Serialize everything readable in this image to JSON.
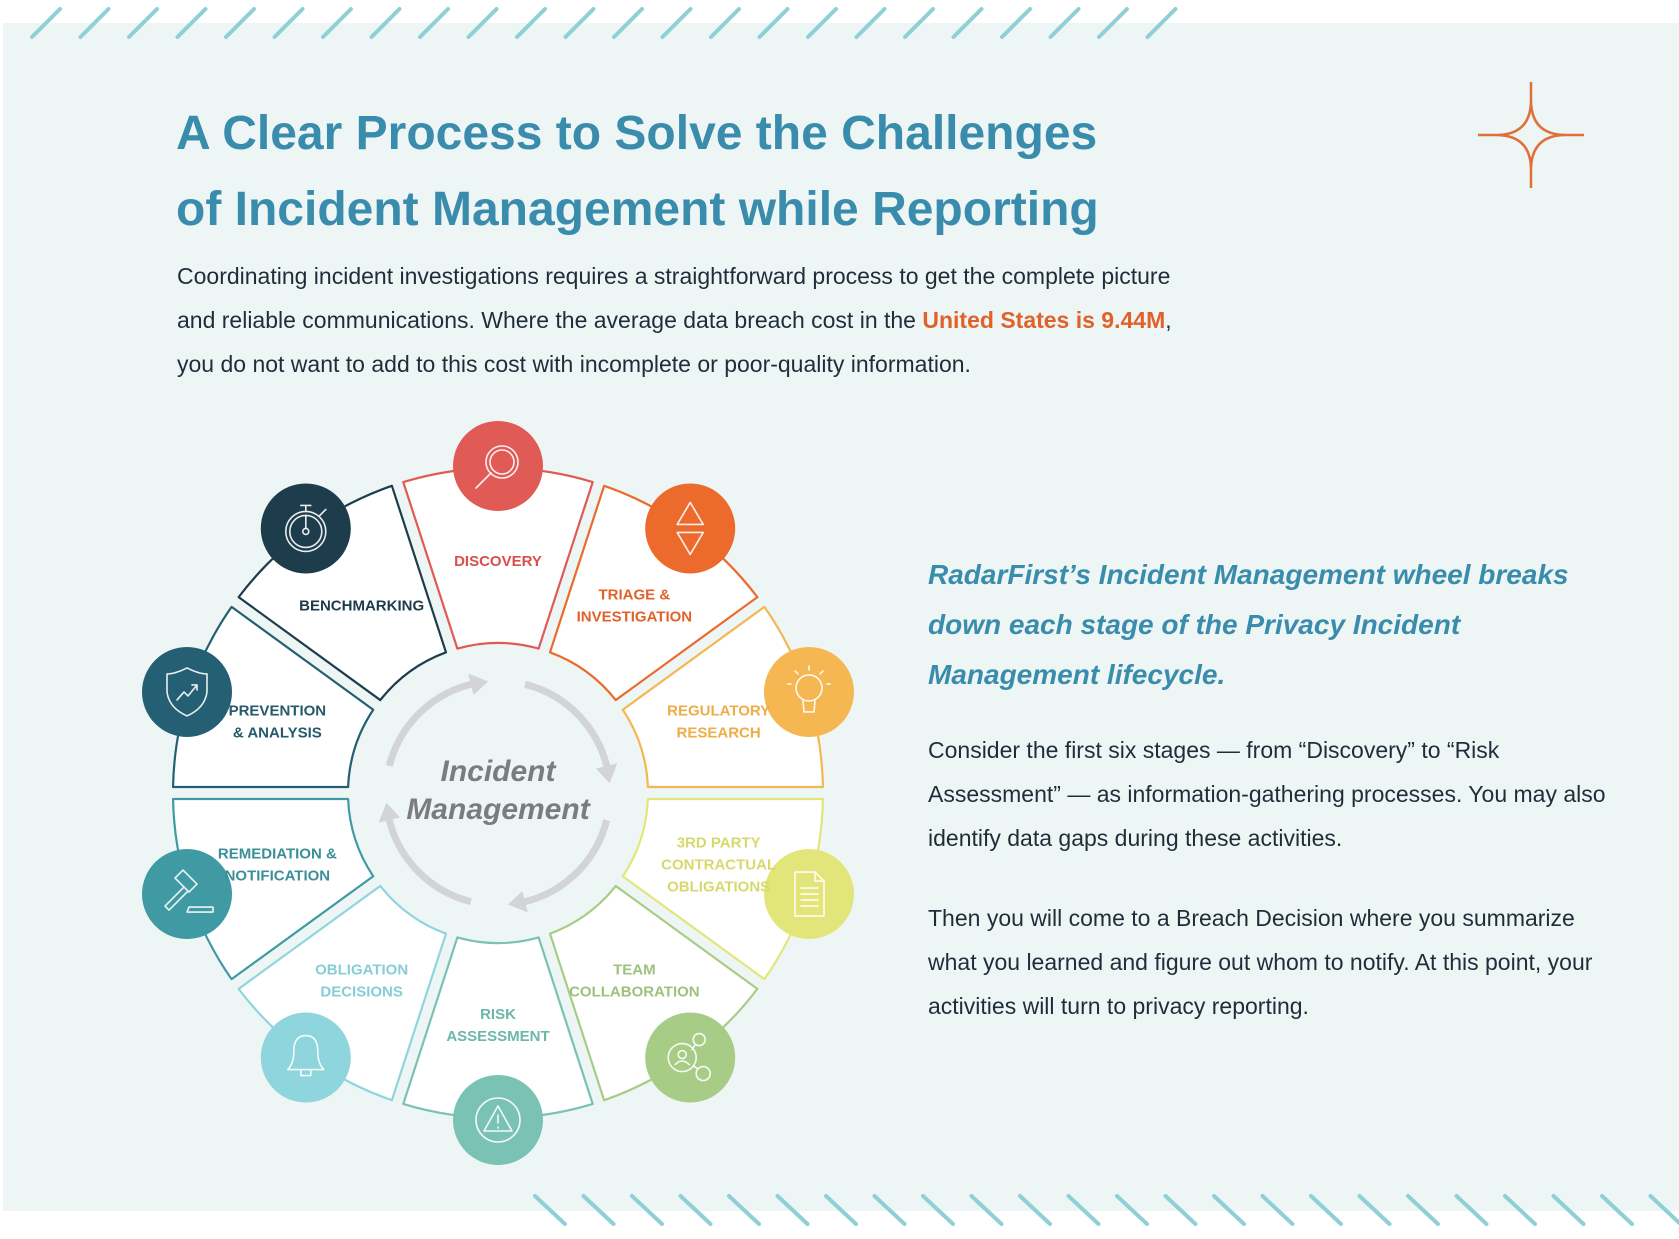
{
  "heading": {
    "line1": "A Clear Process to Solve the Challenges",
    "line2": "of Incident Management while Reporting"
  },
  "intro": {
    "text1": "Coordinating incident investigations requires a straightforward process to get the complete picture and reliable communications. Where the average data breach cost in the ",
    "highlight": "United States is 9.44M",
    "text2": ", you do not want to add to this cost with incomplete or poor-quality information."
  },
  "side": {
    "heading": "RadarFirst’s Incident Management wheel breaks down each stage of the Privacy Incident Management lifecycle.",
    "paragraph1": "Consider the first six stages — from “Discovery” to “Risk Assessment” — as information-gathering processes. You may also identify data gaps during these activities.",
    "paragraph2": "Then you will come to a Breach Decision where you summarize what you learned and figure out whom to notify. At this point, your activities will turn to privacy reporting."
  },
  "colors": {
    "title": "#3a8cad",
    "highlight": "#e0622a",
    "accent_star": "#e07038",
    "stripes": "#8fd0d6",
    "arrows": "#d2d4d6"
  },
  "wheel": {
    "center_lines": [
      "Incident",
      "Management"
    ],
    "stages": [
      {
        "lines": [
          "DISCOVERY"
        ],
        "icon": "magnifier-icon",
        "color": "#e05a56",
        "text_color": "#d94f4c"
      },
      {
        "lines": [
          "TRIAGE &",
          "INVESTIGATION"
        ],
        "icon": "triangles-icon",
        "color": "#ec6a2c",
        "text_color": "#e0622a"
      },
      {
        "lines": [
          "REGULATORY",
          "RESEARCH"
        ],
        "icon": "lightbulb-icon",
        "color": "#f4b752",
        "text_color": "#eeac45"
      },
      {
        "lines": [
          "3RD PARTY",
          "CONTRACTUAL",
          "OBLIGATIONS"
        ],
        "icon": "document-icon",
        "color": "#e2e67a",
        "text_color": "#d6d96c"
      },
      {
        "lines": [
          "TEAM",
          "COLLABORATION"
        ],
        "icon": "people-network-icon",
        "color": "#a7cc86",
        "text_color": "#9cc27c"
      },
      {
        "lines": [
          "RISK",
          "ASSESSMENT"
        ],
        "icon": "warning-icon",
        "color": "#79c2b4",
        "text_color": "#6cb7a9"
      },
      {
        "lines": [
          "OBLIGATION",
          "DECISIONS"
        ],
        "icon": "bell-icon",
        "color": "#8fd5dd",
        "text_color": "#86cdd6"
      },
      {
        "lines": [
          "REMEDIATION &",
          "NOTIFICATION"
        ],
        "icon": "gavel-icon",
        "color": "#3f9aa3",
        "text_color": "#3a8f98"
      },
      {
        "lines": [
          "PREVENTION",
          "& ANALYSIS"
        ],
        "icon": "shield-chart-icon",
        "color": "#255f73",
        "text_color": "#245a6c"
      },
      {
        "lines": [
          "BENCHMARKING"
        ],
        "icon": "stopwatch-icon",
        "color": "#1d3d4c",
        "text_color": "#1d3a48"
      }
    ]
  }
}
